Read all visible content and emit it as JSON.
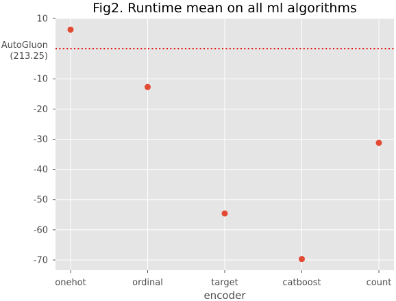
{
  "chart_data": {
    "type": "scatter",
    "title": "Fig2. Runtime mean on all ml algorithms",
    "xlabel": "encoder",
    "ylabel": "",
    "categories": [
      "onehot",
      "ordinal",
      "target",
      "catboost",
      "count"
    ],
    "values": [
      6.3,
      -12.7,
      -54.6,
      -69.7,
      -31.2
    ],
    "ylim": [
      -73.4,
      10
    ],
    "yticks": [
      10,
      -10,
      -20,
      -30,
      -40,
      -50,
      -60,
      -70
    ],
    "reference_line": {
      "y": 0,
      "label_line1": "AutoGluon",
      "label_line2": "(213.25)",
      "style": "dotted",
      "color": "#e00000"
    },
    "grid": true,
    "colors": {
      "point": "#e24a33",
      "panel_bg": "#e5e5e5",
      "grid": "#ffffff"
    }
  }
}
